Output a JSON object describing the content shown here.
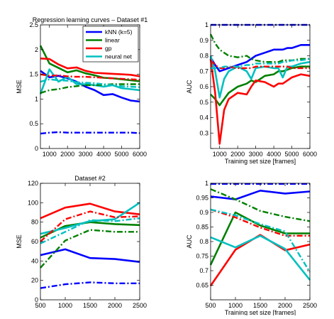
{
  "chart_data": [
    {
      "type": "line",
      "title": "Regression learning curves – Dataset #1",
      "xlabel": "",
      "ylabel": "MSE",
      "xlim": [
        500,
        6000
      ],
      "ylim": [
        0,
        2.5
      ],
      "xticks": [
        1000,
        2000,
        3000,
        4000,
        5000,
        6000
      ],
      "yticks": [
        0,
        0.5,
        1,
        1.5,
        2,
        2.5
      ],
      "ytick_labels": [
        "0",
        "0.5",
        "1",
        "1.5",
        "2",
        "2.5"
      ],
      "legend": {
        "placement": "top-right",
        "entries": [
          "kNN (k=5)",
          "linear",
          "gp",
          "neural net"
        ]
      },
      "x": [
        500,
        1000,
        1500,
        2000,
        2500,
        3000,
        3500,
        4000,
        4500,
        5000,
        5500,
        6000
      ],
      "series": [
        {
          "name": "kNN (k=5)",
          "style": "solid",
          "color": "#0000ff",
          "values": [
            1.57,
            1.44,
            1.47,
            1.42,
            1.35,
            1.25,
            1.18,
            1.08,
            1.1,
            1.03,
            0.97,
            0.95
          ]
        },
        {
          "name": "linear",
          "style": "solid",
          "color": "#008000",
          "values": [
            2.08,
            1.72,
            1.63,
            1.54,
            1.58,
            1.52,
            1.48,
            1.43,
            1.42,
            1.4,
            1.38,
            1.36
          ]
        },
        {
          "name": "gp",
          "style": "solid",
          "color": "#ff0000",
          "values": [
            1.82,
            1.81,
            1.7,
            1.62,
            1.64,
            1.57,
            1.53,
            1.52,
            1.51,
            1.5,
            1.49,
            1.46
          ]
        },
        {
          "name": "neural net",
          "style": "solid",
          "color": "#00c0c0",
          "values": [
            1.1,
            1.6,
            1.35,
            1.45,
            1.3,
            1.3,
            1.28,
            1.25,
            1.28,
            1.22,
            1.2,
            1.18
          ]
        },
        {
          "style": "dashdot",
          "color": "#0000ff",
          "values": [
            0.3,
            0.32,
            0.33,
            0.32,
            0.32,
            0.32,
            0.32,
            0.32,
            0.32,
            0.32,
            0.32,
            0.31
          ]
        },
        {
          "style": "dashdot",
          "color": "#008000",
          "values": [
            1.12,
            1.18,
            1.2,
            1.24,
            1.26,
            1.28,
            1.28,
            1.29,
            1.3,
            1.3,
            1.3,
            1.3
          ]
        },
        {
          "style": "dashdot",
          "color": "#ff0000",
          "values": [
            1.5,
            1.47,
            1.48,
            1.46,
            1.45,
            1.45,
            1.44,
            1.43,
            1.42,
            1.41,
            1.4,
            1.39
          ]
        },
        {
          "style": "dashdot",
          "color": "#00c0c0",
          "values": [
            1.35,
            1.4,
            1.38,
            1.37,
            1.34,
            1.33,
            1.32,
            1.3,
            1.28,
            1.26,
            1.25,
            1.24
          ]
        }
      ]
    },
    {
      "type": "line",
      "title": "",
      "xlabel": "Training set size [frames]",
      "ylabel": "AUC",
      "xlim": [
        500,
        6000
      ],
      "ylim": [
        0.2,
        1
      ],
      "xticks": [
        1000,
        2000,
        3000,
        4000,
        5000,
        6000
      ],
      "yticks": [
        0.2,
        0.3,
        0.4,
        0.5,
        0.6,
        0.7,
        0.8,
        0.9,
        1
      ],
      "ytick_labels": [
        "",
        "0.3",
        "0.4",
        "0.5",
        "0.6",
        "0.7",
        "0.8",
        "0.9",
        "1"
      ],
      "x": [
        500,
        750,
        1000,
        1250,
        1500,
        2000,
        2500,
        2750,
        3000,
        3500,
        4000,
        4250,
        4500,
        4750,
        5000,
        5500,
        6000
      ],
      "series": [
        {
          "name": "kNN (k=5)",
          "style": "solid",
          "color": "#0000ff",
          "values": [
            0.79,
            0.74,
            0.7,
            0.71,
            0.72,
            0.74,
            0.76,
            0.78,
            0.8,
            0.82,
            0.84,
            0.84,
            0.84,
            0.85,
            0.85,
            0.87,
            0.87
          ]
        },
        {
          "name": "linear",
          "style": "solid",
          "color": "#008000",
          "values": [
            0.55,
            0.52,
            0.48,
            0.52,
            0.56,
            0.6,
            0.62,
            0.64,
            0.63,
            0.67,
            0.68,
            0.7,
            0.7,
            0.71,
            0.72,
            0.73,
            0.73
          ]
        },
        {
          "name": "gp",
          "style": "solid",
          "color": "#ff0000",
          "values": [
            0.78,
            0.56,
            0.23,
            0.45,
            0.52,
            0.56,
            0.55,
            0.6,
            0.64,
            0.63,
            0.6,
            0.62,
            0.62,
            0.64,
            0.66,
            0.68,
            0.67
          ]
        },
        {
          "name": "neural net",
          "style": "solid",
          "color": "#00c0c0",
          "values": [
            0.8,
            0.7,
            0.53,
            0.65,
            0.7,
            0.73,
            0.7,
            0.65,
            0.72,
            0.73,
            0.72,
            0.72,
            0.66,
            0.73,
            0.73,
            0.75,
            0.76
          ]
        },
        {
          "style": "dashdot",
          "color": "#0000ff",
          "values": [
            1.0,
            1.0,
            1.0,
            1.0,
            1.0,
            1.0,
            1.0,
            1.0,
            1.0,
            1.0,
            1.0,
            1.0,
            1.0,
            1.0,
            1.0,
            1.0,
            1.0
          ]
        },
        {
          "style": "dashdot",
          "color": "#008000",
          "values": [
            0.94,
            0.88,
            0.84,
            0.82,
            0.8,
            0.79,
            0.8,
            0.78,
            0.77,
            0.76,
            0.76,
            0.76,
            0.77,
            0.77,
            0.77,
            0.78,
            0.78
          ]
        },
        {
          "style": "dashdot",
          "color": "#ff0000",
          "values": [
            0.77,
            0.74,
            0.72,
            0.72,
            0.73,
            0.72,
            0.72,
            0.72,
            0.73,
            0.73,
            0.73,
            0.73,
            0.73,
            0.73,
            0.72,
            0.72,
            0.72
          ]
        },
        {
          "style": "dashdot",
          "color": "#00c0c0",
          "values": [
            0.72,
            0.72,
            0.72,
            0.73,
            0.73,
            0.73,
            0.74,
            0.74,
            0.75,
            0.75,
            0.75,
            0.75,
            0.76,
            0.76,
            0.77,
            0.77,
            0.78
          ]
        }
      ]
    },
    {
      "type": "line",
      "title": "Dataset #2",
      "xlabel": "",
      "ylabel": "MSE",
      "xlim": [
        500,
        2500
      ],
      "ylim": [
        0,
        120
      ],
      "xticks": [
        500,
        1000,
        1500,
        2000,
        2500
      ],
      "yticks": [
        0,
        20,
        40,
        60,
        80,
        100,
        120
      ],
      "ytick_labels": [
        "0",
        "20",
        "40",
        "60",
        "80",
        "100",
        "120"
      ],
      "x": [
        500,
        1000,
        1500,
        2000,
        2500
      ],
      "series": [
        {
          "name": "kNN (k=5)",
          "style": "solid",
          "color": "#0000ff",
          "values": [
            46,
            52,
            43,
            42,
            39
          ]
        },
        {
          "name": "linear",
          "style": "solid",
          "color": "#008000",
          "values": [
            64,
            76,
            80,
            78,
            77
          ]
        },
        {
          "name": "gp",
          "style": "solid",
          "color": "#ff0000",
          "values": [
            84,
            95,
            99,
            91,
            88
          ]
        },
        {
          "name": "neural net",
          "style": "solid",
          "color": "#00c0c0",
          "values": [
            68,
            74,
            81,
            83,
            100
          ]
        },
        {
          "style": "dashdot",
          "color": "#0000ff",
          "values": [
            12,
            16,
            18,
            17,
            17
          ]
        },
        {
          "style": "dashdot",
          "color": "#008000",
          "values": [
            33,
            61,
            72,
            70,
            70
          ]
        },
        {
          "style": "dashdot",
          "color": "#ff0000",
          "values": [
            60,
            83,
            91,
            85,
            86
          ]
        },
        {
          "style": "dashdot",
          "color": "#00c0c0",
          "values": [
            58,
            70,
            82,
            81,
            84
          ]
        }
      ]
    },
    {
      "type": "line",
      "title": "",
      "xlabel": "Training set size [frames]",
      "ylabel": "AUC",
      "xlim": [
        500,
        2500
      ],
      "ylim": [
        0.6,
        1
      ],
      "xticks": [
        500,
        1000,
        1500,
        2000,
        2500
      ],
      "yticks": [
        0.6,
        0.65,
        0.7,
        0.75,
        0.8,
        0.85,
        0.9,
        0.95,
        1
      ],
      "ytick_labels": [
        "",
        "0.65",
        "0.7",
        "0.75",
        "0.8",
        "0.85",
        "0.9",
        "0.95",
        "1"
      ],
      "x": [
        500,
        1000,
        1500,
        2000,
        2500
      ],
      "series": [
        {
          "name": "kNN (k=5)",
          "style": "solid",
          "color": "#0000ff",
          "values": [
            0.955,
            0.945,
            0.975,
            0.965,
            0.972
          ]
        },
        {
          "name": "linear",
          "style": "solid",
          "color": "#008000",
          "values": [
            0.72,
            0.9,
            0.855,
            0.828,
            0.828
          ]
        },
        {
          "name": "gp",
          "style": "solid",
          "color": "#ff0000",
          "values": [
            0.648,
            0.772,
            0.823,
            0.77,
            0.79
          ]
        },
        {
          "name": "neural net",
          "style": "solid",
          "color": "#00c0c0",
          "values": [
            0.815,
            0.78,
            0.82,
            0.775,
            0.668
          ]
        },
        {
          "style": "dashdot",
          "color": "#0000ff",
          "values": [
            0.998,
            0.998,
            0.998,
            0.998,
            0.998
          ]
        },
        {
          "style": "dashdot",
          "color": "#008000",
          "values": [
            0.98,
            0.945,
            0.905,
            0.885,
            0.87
          ]
        },
        {
          "style": "dashdot",
          "color": "#ff0000",
          "values": [
            0.91,
            0.883,
            0.848,
            0.82,
            0.82
          ]
        },
        {
          "style": "dashdot",
          "color": "#00c0c0",
          "values": [
            0.91,
            0.89,
            0.86,
            0.835,
            0.695
          ]
        }
      ]
    }
  ]
}
